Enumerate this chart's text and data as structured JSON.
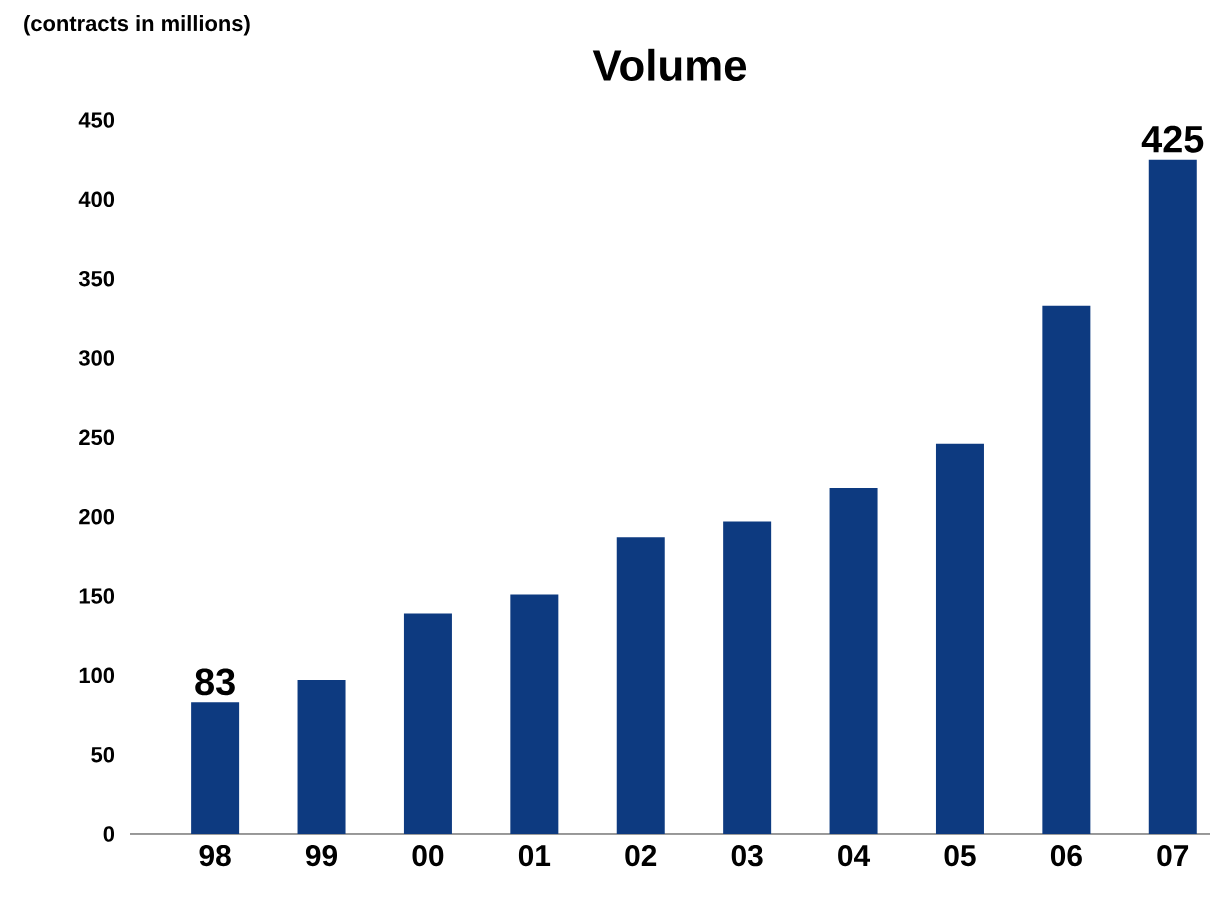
{
  "chart_data": {
    "type": "bar",
    "title": "Volume",
    "ylabel": "(contracts in millions)",
    "categories": [
      "98",
      "99",
      "00",
      "01",
      "02",
      "03",
      "04",
      "05",
      "06",
      "07"
    ],
    "values": [
      83,
      97,
      139,
      151,
      187,
      197,
      218,
      246,
      333,
      425
    ],
    "value_labels": [
      "83",
      null,
      null,
      null,
      null,
      null,
      null,
      null,
      null,
      "425"
    ],
    "color": "#0d3a80",
    "ylim": [
      0,
      450
    ],
    "yticks": [
      0,
      50,
      100,
      150,
      200,
      250,
      300,
      350,
      400,
      450
    ],
    "grid": false
  }
}
